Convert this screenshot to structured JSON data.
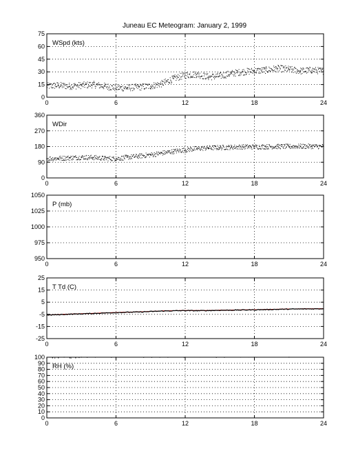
{
  "title": "Juneau EC Meteogram:   January  2, 1999",
  "colors": {
    "axes": "#000000",
    "grid": "#000000",
    "primary": "#000000",
    "temperature": "#ff0000"
  },
  "chart_data": [
    {
      "type": "scatter",
      "label": "WSpd (kts)",
      "xlim": [
        0,
        24
      ],
      "x_ticks": [
        0,
        6,
        12,
        18,
        24
      ],
      "ylim": [
        0,
        75
      ],
      "y_ticks": [
        0,
        15,
        30,
        45,
        60,
        75
      ],
      "grid": true,
      "series": [
        {
          "color": "#000000",
          "x": [
            0,
            1,
            2,
            3,
            4,
            5,
            6,
            7,
            8,
            9,
            10,
            11,
            12,
            13,
            14,
            15,
            16,
            17,
            18,
            19,
            20,
            21,
            22,
            23,
            24
          ],
          "y": [
            13,
            14,
            13,
            14,
            15,
            13,
            11,
            11,
            12,
            13,
            16,
            22,
            26,
            27,
            24,
            25,
            28,
            30,
            31,
            32,
            34,
            33,
            31,
            32,
            31
          ],
          "scatter": 4
        }
      ]
    },
    {
      "type": "scatter",
      "label": "WDir",
      "xlim": [
        0,
        24
      ],
      "x_ticks": [
        0,
        6,
        12,
        18,
        24
      ],
      "ylim": [
        0,
        360
      ],
      "y_ticks": [
        0,
        90,
        180,
        270,
        360
      ],
      "grid": true,
      "series": [
        {
          "color": "#000000",
          "x": [
            0,
            1,
            2,
            3,
            4,
            5,
            6,
            7,
            8,
            9,
            10,
            11,
            12,
            13,
            14,
            15,
            16,
            17,
            18,
            19,
            20,
            21,
            22,
            23,
            24
          ],
          "y": [
            110,
            112,
            115,
            118,
            117,
            112,
            110,
            118,
            125,
            132,
            142,
            152,
            160,
            168,
            172,
            174,
            176,
            178,
            178,
            179,
            180,
            180,
            181,
            181,
            180
          ],
          "scatter": 14
        }
      ]
    },
    {
      "type": "scatter",
      "label": "P (mb)",
      "xlim": [
        0,
        24
      ],
      "x_ticks": [
        0,
        6,
        12,
        18,
        24
      ],
      "ylim": [
        950,
        1050
      ],
      "y_ticks": [
        950,
        975,
        1000,
        1025,
        1050
      ],
      "grid": true,
      "series": []
    },
    {
      "type": "line",
      "label": "T Td (C)",
      "xlim": [
        0,
        24
      ],
      "x_ticks": [
        0,
        6,
        12,
        18,
        24
      ],
      "ylim": [
        -25,
        25
      ],
      "y_ticks": [
        -25,
        -15,
        -5,
        5,
        15,
        25
      ],
      "grid": true,
      "series": [
        {
          "color": "#ff0000",
          "x": [
            0,
            1,
            2,
            3,
            4,
            5,
            6,
            7,
            8,
            9,
            10,
            11,
            12,
            13,
            14,
            15,
            16,
            17,
            18,
            19,
            20,
            21,
            22,
            23,
            24
          ],
          "y": [
            -5.5,
            -5.2,
            -4.8,
            -4.5,
            -4.2,
            -3.8,
            -3.5,
            -3.2,
            -3.0,
            -2.6,
            -2.2,
            -2.0,
            -1.8,
            -1.9,
            -1.8,
            -1.6,
            -1.5,
            -1.3,
            -1.2,
            -1.0,
            -0.8,
            -0.6,
            -0.5,
            -0.4,
            -0.3
          ],
          "scatter": 0
        },
        {
          "color": "#000000",
          "x": [
            0,
            1,
            2,
            3,
            4,
            5,
            6,
            7,
            8,
            9,
            10,
            11,
            12,
            13,
            14,
            15,
            16,
            17,
            18,
            19,
            20,
            21,
            22,
            23,
            24
          ],
          "y": [
            -5.6,
            -5.3,
            -4.9,
            -4.6,
            -4.3,
            -3.9,
            -3.6,
            -3.3,
            -3.1,
            -2.7,
            -2.3,
            -2.1,
            -1.9,
            -2.0,
            -1.9,
            -1.7,
            -1.6,
            -1.4,
            -1.3,
            -1.1,
            -0.9,
            -0.7,
            -0.6,
            -0.5,
            -0.4
          ],
          "scatter": 0.3
        }
      ]
    },
    {
      "type": "scatter",
      "label": "RH (%)",
      "xlim": [
        0,
        24
      ],
      "x_ticks": [
        0,
        6,
        12,
        18,
        24
      ],
      "ylim": [
        0,
        100
      ],
      "y_ticks": [
        0,
        10,
        20,
        30,
        40,
        50,
        60,
        70,
        80,
        90,
        100
      ],
      "grid": true,
      "series": [
        {
          "color": "#000000",
          "x": [
            0,
            0.5,
            1,
            1.5,
            2,
            2.5,
            3,
            6,
            12,
            18,
            21
          ],
          "y": [
            98,
            99,
            99,
            100,
            99,
            99,
            100,
            100,
            100,
            100,
            100
          ],
          "scatter": 0.5
        }
      ]
    }
  ]
}
